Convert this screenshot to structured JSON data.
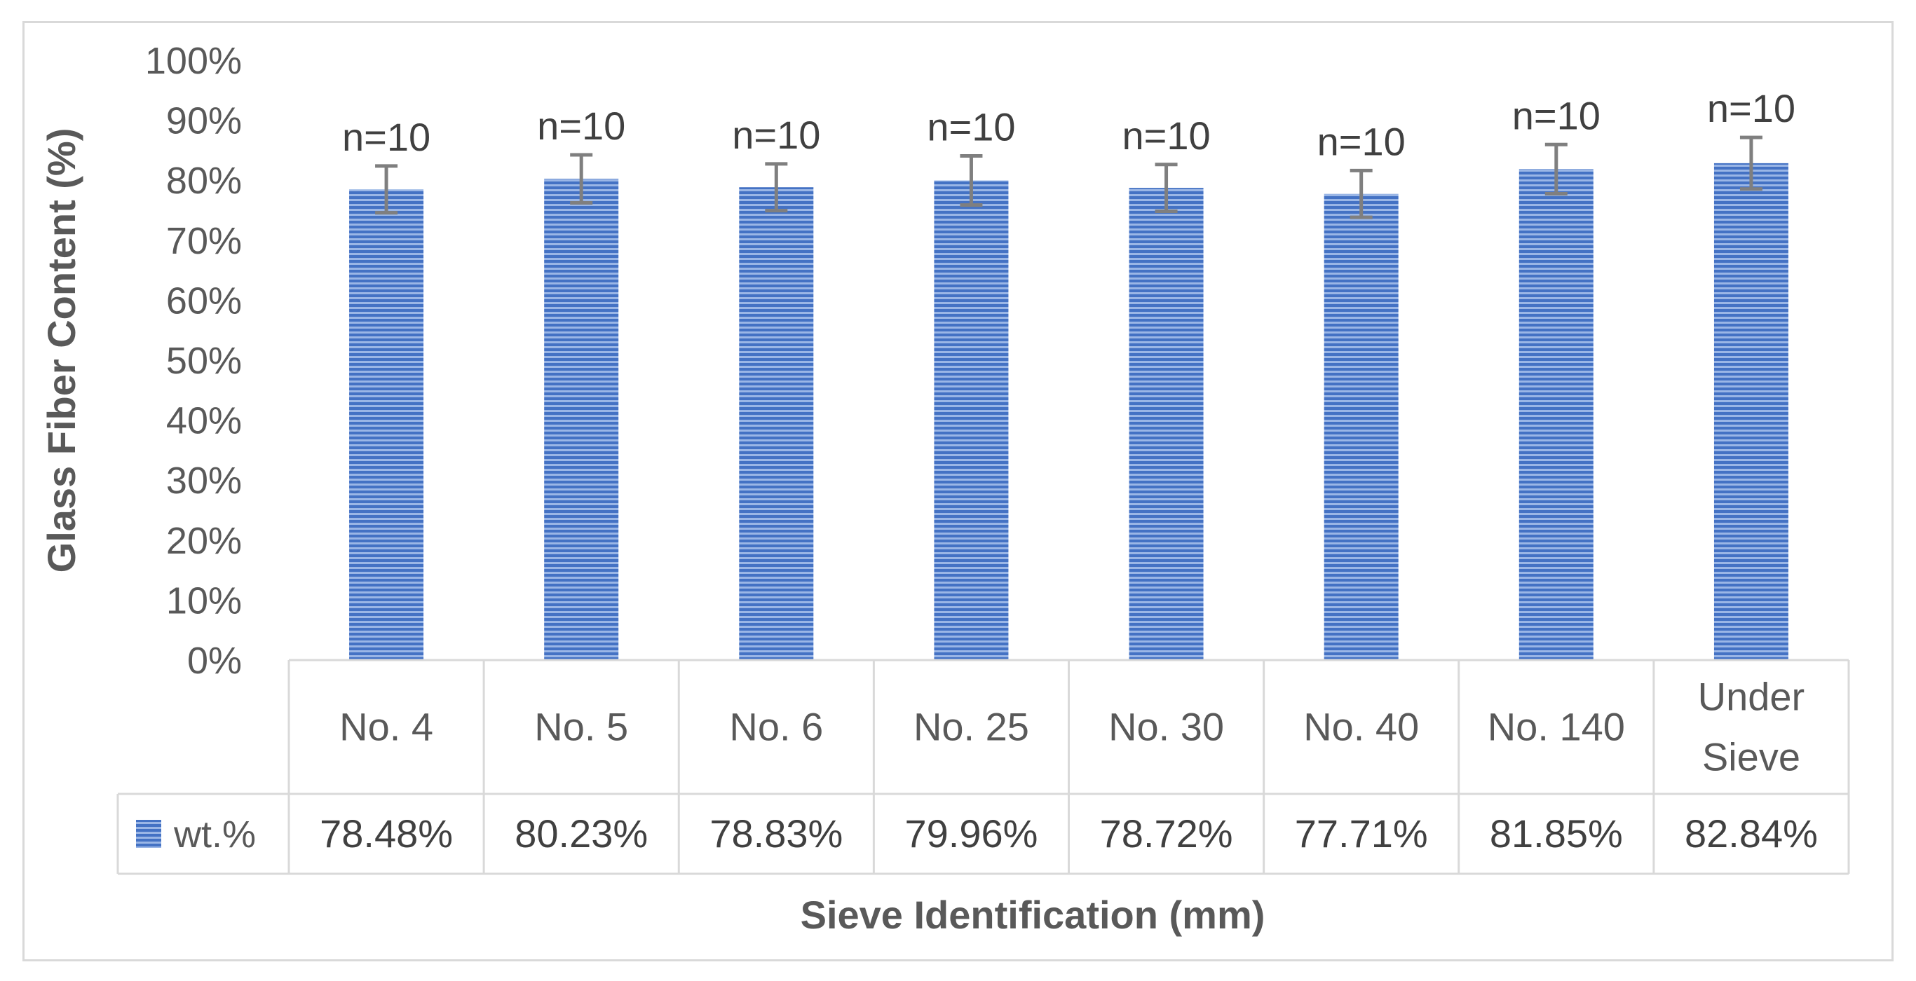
{
  "chart_data": {
    "type": "bar",
    "title": "",
    "ylabel": "Glass Fiber Content (%)",
    "xlabel": "Sieve Identification (mm)",
    "ylim": [
      0,
      100
    ],
    "yticks": [
      "0%",
      "10%",
      "20%",
      "30%",
      "40%",
      "50%",
      "60%",
      "70%",
      "80%",
      "90%",
      "100%"
    ],
    "categories": [
      "No. 4",
      "No. 5",
      "No. 6",
      "No. 25",
      "No. 30",
      "No. 40",
      "No. 140",
      "Under Sieve"
    ],
    "series": [
      {
        "name": "wt.%",
        "color": "#4472c4",
        "values": [
          78.48,
          80.23,
          78.83,
          79.96,
          78.72,
          77.71,
          81.85,
          82.84
        ],
        "value_labels": [
          "78.48%",
          "80.23%",
          "78.83%",
          "79.96%",
          "78.72%",
          "77.71%",
          "81.85%",
          "82.84%"
        ],
        "error": [
          3.9,
          4.0,
          3.9,
          4.1,
          3.9,
          3.9,
          4.1,
          4.3
        ],
        "annotations": [
          "n=10",
          "n=10",
          "n=10",
          "n=10",
          "n=10",
          "n=10",
          "n=10",
          "n=10"
        ]
      }
    ],
    "data_table": true
  }
}
